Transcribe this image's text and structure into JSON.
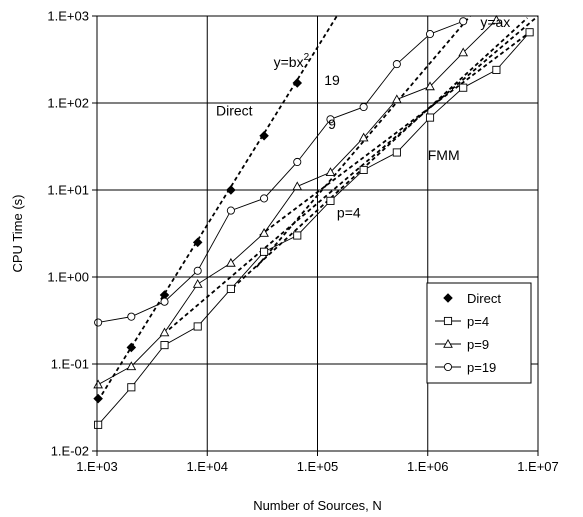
{
  "chart_data": {
    "type": "line",
    "x_scale": "log",
    "y_scale": "log",
    "xlabel": "Number of Sources, N",
    "ylabel": "CPU Time (s)",
    "xlim": [
      1000,
      10000000
    ],
    "ylim": [
      0.01,
      1000
    ],
    "x_ticks": [
      {
        "value": 1000,
        "label": "1.E+03"
      },
      {
        "value": 10000,
        "label": "1.E+04"
      },
      {
        "value": 100000,
        "label": "1.E+05"
      },
      {
        "value": 1000000,
        "label": "1.E+06"
      },
      {
        "value": 10000000,
        "label": "1.E+07"
      }
    ],
    "y_ticks": [
      {
        "value": 0.01,
        "label": "1.E-02"
      },
      {
        "value": 0.1,
        "label": "1.E-01"
      },
      {
        "value": 1,
        "label": "1.E+00"
      },
      {
        "value": 10,
        "label": "1.E+01"
      },
      {
        "value": 100,
        "label": "1.E+02"
      },
      {
        "value": 1000,
        "label": "1.E+03"
      }
    ],
    "grid": true,
    "legend_position": "bottom-right",
    "series": [
      {
        "name": "Direct",
        "marker": "filled-diamond",
        "line": false,
        "points": [
          [
            1024,
            0.04
          ],
          [
            2048,
            0.155
          ],
          [
            4096,
            0.62
          ],
          [
            8192,
            2.5
          ],
          [
            16384,
            10
          ],
          [
            32768,
            42
          ],
          [
            65536,
            170
          ]
        ]
      },
      {
        "name": "p=4",
        "marker": "open-square",
        "line": true,
        "points": [
          [
            1024,
            0.02
          ],
          [
            2048,
            0.054
          ],
          [
            4096,
            0.165
          ],
          [
            8192,
            0.27
          ],
          [
            16384,
            0.73
          ],
          [
            32768,
            1.95
          ],
          [
            65536,
            3.0
          ],
          [
            131072,
            7.5
          ],
          [
            262144,
            17
          ],
          [
            524288,
            27
          ],
          [
            1048576,
            68
          ],
          [
            2097152,
            150
          ],
          [
            4194304,
            240
          ],
          [
            8388608,
            650
          ]
        ]
      },
      {
        "name": "p=9",
        "marker": "open-triangle",
        "line": true,
        "points": [
          [
            1024,
            0.058
          ],
          [
            2048,
            0.094
          ],
          [
            4096,
            0.23
          ],
          [
            8192,
            0.83
          ],
          [
            16384,
            1.45
          ],
          [
            32768,
            3.2
          ],
          [
            65536,
            11
          ],
          [
            131072,
            16
          ],
          [
            262144,
            40
          ],
          [
            524288,
            110
          ],
          [
            1048576,
            155
          ],
          [
            2097152,
            380
          ],
          [
            4194304,
            900
          ]
        ]
      },
      {
        "name": "p=19",
        "marker": "open-circle",
        "line": true,
        "points": [
          [
            1024,
            0.3
          ],
          [
            2048,
            0.35
          ],
          [
            4096,
            0.52
          ],
          [
            8192,
            1.18
          ],
          [
            16384,
            5.8
          ],
          [
            32768,
            8.0
          ],
          [
            65536,
            21
          ],
          [
            131072,
            65
          ],
          [
            262144,
            90
          ],
          [
            524288,
            280
          ],
          [
            1048576,
            620
          ],
          [
            2097152,
            870
          ]
        ]
      }
    ],
    "fit_lines": [
      {
        "from": [
          1024,
          0.038
        ],
        "to": [
          150000,
          1000
        ]
      },
      {
        "from": [
          4500,
          0.25
        ],
        "to": [
          10000000,
          1000
        ]
      },
      {
        "from": [
          17000,
          0.75
        ],
        "to": [
          8000000,
          950
        ]
      },
      {
        "from": [
          28000,
          1.3
        ],
        "to": [
          2500000,
          1050
        ]
      },
      {
        "from": [
          30000,
          3.0
        ],
        "to": [
          8000000,
          620
        ]
      }
    ],
    "annotations": [
      {
        "text": "y=bx",
        "superscript": "2",
        "x": 40000,
        "y": 260
      },
      {
        "text": "y=ax",
        "x": 3000000,
        "y": 750
      },
      {
        "text": "Direct",
        "x": 12000,
        "y": 72
      },
      {
        "text": "19",
        "x": 115000,
        "y": 160
      },
      {
        "text": "9",
        "x": 125000,
        "y": 50
      },
      {
        "text": "FMM",
        "x": 1000000,
        "y": 22
      },
      {
        "text": "p=4",
        "x": 150000,
        "y": 4.8
      }
    ],
    "legend": [
      "Direct",
      "p=4",
      "p=9",
      "p=19"
    ]
  }
}
